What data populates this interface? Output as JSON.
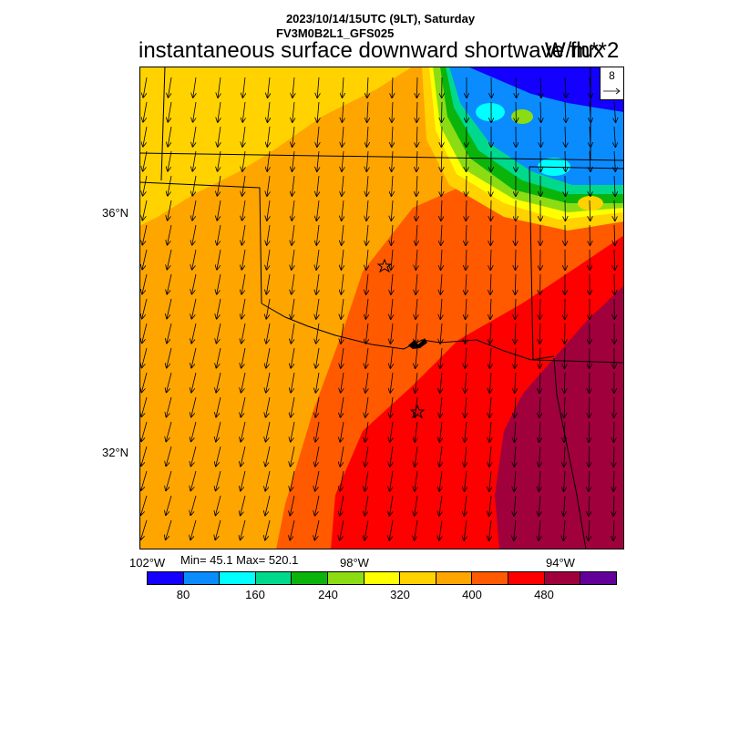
{
  "header": {
    "date_line": "2023/10/14/15UTC (9LT), Saturday",
    "model_line": "FV3M0B2L1_GFS025",
    "title": "instantaneous surface downward shortwave flux",
    "units": "W/m**2"
  },
  "axes": {
    "lat_labels": [
      "36°N",
      "32°N"
    ],
    "lon_labels": [
      "102°W",
      "98°W",
      "94°W"
    ]
  },
  "stats": {
    "text": "Min= 45.1 Max= 520.1",
    "min": 45.1,
    "max": 520.1
  },
  "colorbar": {
    "colors": [
      "#1400ff",
      "#0a8cff",
      "#00ffff",
      "#00d98c",
      "#0ab40a",
      "#8cdc14",
      "#ffff00",
      "#ffd200",
      "#ffa500",
      "#ff5a00",
      "#ff0000",
      "#a0003c",
      "#64009a"
    ],
    "tick_labels": [
      "80",
      "160",
      "240",
      "320",
      "400",
      "480"
    ]
  },
  "vector_legend": {
    "value": "8"
  },
  "chart_data": {
    "type": "heatmap",
    "title": "instantaneous surface downward shortwave flux",
    "units": "W/m**2",
    "min": 45.1,
    "max": 520.1,
    "levels": [
      40,
      80,
      120,
      160,
      200,
      240,
      280,
      320,
      360,
      400,
      440,
      480,
      520
    ],
    "lat_ticks": [
      36,
      32
    ],
    "lon_ticks": [
      -102,
      -98,
      -94
    ],
    "markers": [
      "star",
      "star"
    ],
    "wind_vectors": "shown, reference vector 8"
  }
}
